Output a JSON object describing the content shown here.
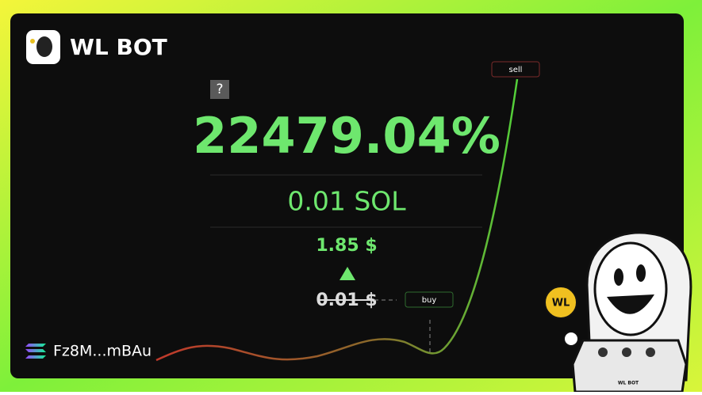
{
  "brand": "WL BOT",
  "help": "?",
  "pnl": "22479.04%",
  "amount": "0.01 SOL",
  "current_price": "1.85 $",
  "entry_price": "0.01 $",
  "buy_label": "buy",
  "sell_label": "sell",
  "wallet": "Fz8M...mBAu",
  "coin_label": "WL",
  "machine_label": "WL BOT"
}
